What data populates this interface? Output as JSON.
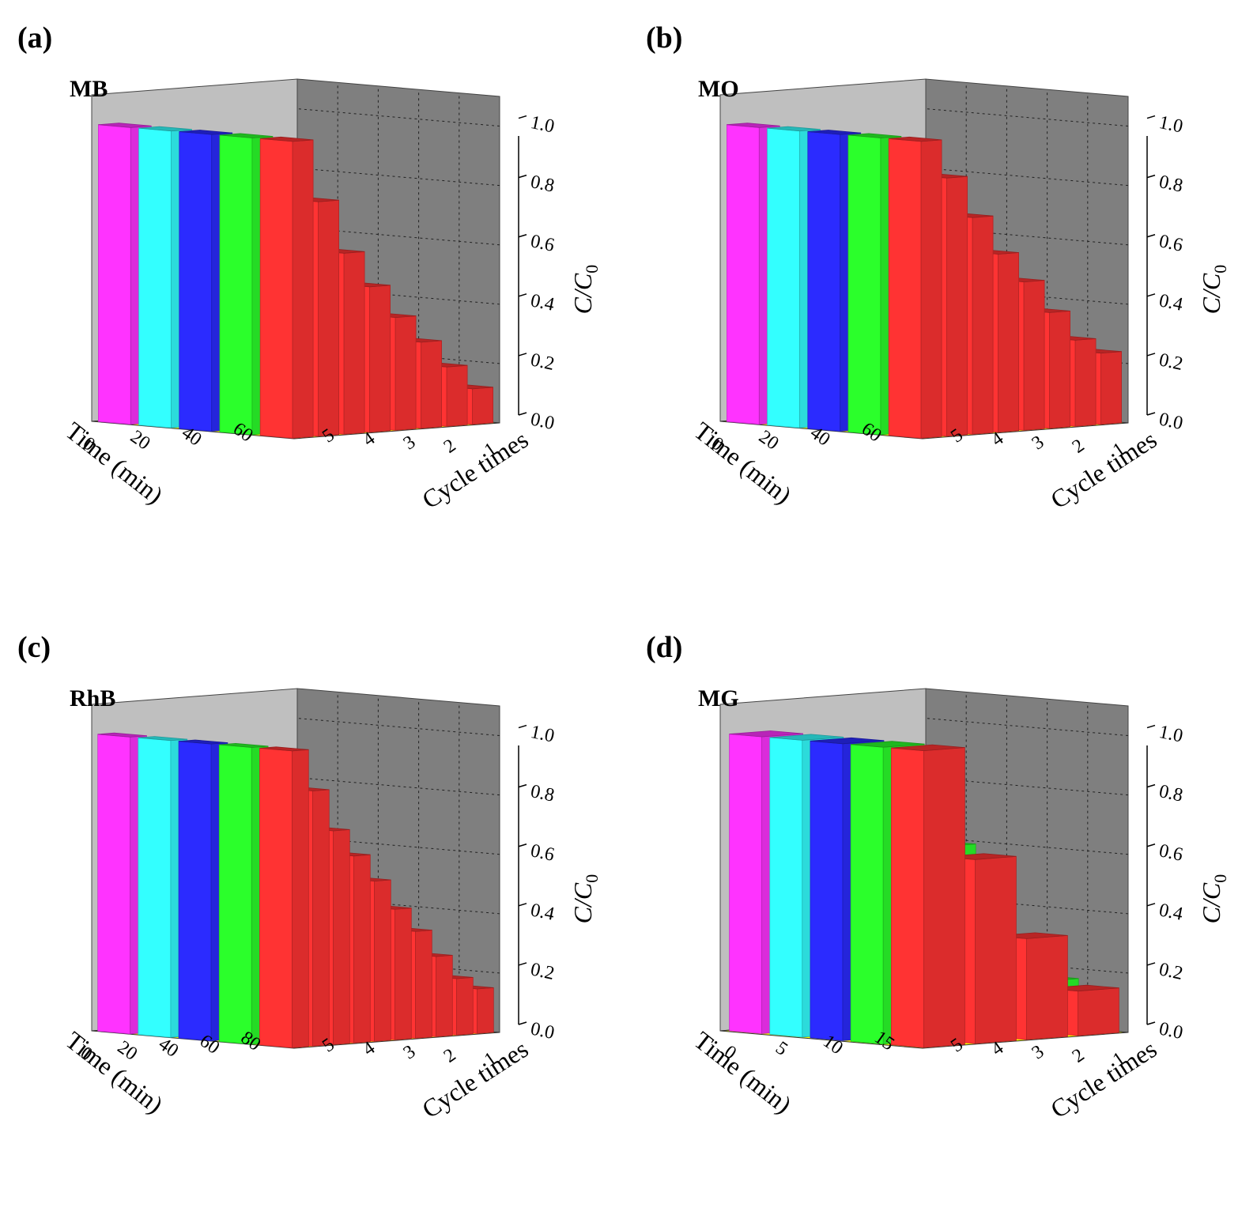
{
  "chart_data": [
    {
      "type": "bar3d",
      "panel": "(a)",
      "dye": "MB",
      "xlabel": "Time (min)",
      "ylabel": "Cycle times",
      "zlabel": "C/C",
      "zlabel_sub": "0",
      "zlim": [
        0,
        1.1
      ],
      "z_ticks": [
        "0.0",
        "0.2",
        "0.4",
        "0.6",
        "0.8",
        "1.0"
      ],
      "time_ticks": [
        "0",
        "20",
        "40",
        "60"
      ],
      "cycles": [
        "1",
        "2",
        "3",
        "4",
        "5"
      ],
      "time": [
        0,
        10,
        20,
        30,
        40,
        50,
        60,
        70
      ],
      "series": [
        {
          "name": "5",
          "color": "#ff33ff",
          "values": [
            1.0,
            0.82,
            0.65,
            0.52,
            0.41,
            0.31,
            0.2,
            0.12
          ]
        },
        {
          "name": "4",
          "color": "#33ffff",
          "values": [
            1.0,
            0.8,
            0.64,
            0.52,
            0.41,
            0.31,
            0.21,
            0.12
          ]
        },
        {
          "name": "3",
          "color": "#2b2bff",
          "values": [
            1.0,
            0.78,
            0.62,
            0.5,
            0.4,
            0.31,
            0.2,
            0.12
          ]
        },
        {
          "name": "2",
          "color": "#2bff2b",
          "values": [
            1.0,
            0.8,
            0.63,
            0.5,
            0.4,
            0.31,
            0.21,
            0.12
          ]
        },
        {
          "name": "1",
          "color": "#ff3333",
          "values": [
            1.0,
            0.79,
            0.61,
            0.49,
            0.38,
            0.29,
            0.2,
            0.12
          ]
        }
      ]
    },
    {
      "type": "bar3d",
      "panel": "(b)",
      "dye": "MO",
      "xlabel": "Time (min)",
      "ylabel": "Cycle times",
      "zlabel": "C/C",
      "zlabel_sub": "0",
      "zlim": [
        0,
        1.1
      ],
      "z_ticks": [
        "0.0",
        "0.2",
        "0.4",
        "0.6",
        "0.8",
        "1.0"
      ],
      "time_ticks": [
        "0",
        "20",
        "40",
        "60"
      ],
      "cycles": [
        "1",
        "2",
        "3",
        "4",
        "5"
      ],
      "time": [
        0,
        10,
        20,
        30,
        40,
        50,
        60,
        70
      ],
      "series": [
        {
          "name": "5",
          "color": "#ff33ff",
          "values": [
            1.0,
            0.82,
            0.69,
            0.56,
            0.45,
            0.35,
            0.24,
            0.17
          ]
        },
        {
          "name": "4",
          "color": "#33ffff",
          "values": [
            1.0,
            0.82,
            0.67,
            0.54,
            0.45,
            0.35,
            0.22,
            0.15
          ]
        },
        {
          "name": "3",
          "color": "#2b2bff",
          "values": [
            1.0,
            0.83,
            0.71,
            0.58,
            0.47,
            0.4,
            0.31,
            0.28
          ]
        },
        {
          "name": "2",
          "color": "#2bff2b",
          "values": [
            1.0,
            0.86,
            0.73,
            0.62,
            0.51,
            0.42,
            0.29,
            0.24
          ]
        },
        {
          "name": "1",
          "color": "#ff3333",
          "values": [
            1.0,
            0.87,
            0.73,
            0.6,
            0.5,
            0.39,
            0.29,
            0.24
          ]
        }
      ]
    },
    {
      "type": "bar3d",
      "panel": "(c)",
      "dye": "RhB",
      "xlabel": "Time (min)",
      "ylabel": "Cycle times",
      "zlabel": "C/C",
      "zlabel_sub": "0",
      "zlim": [
        0,
        1.1
      ],
      "z_ticks": [
        "0.0",
        "0.2",
        "0.4",
        "0.6",
        "0.8",
        "1.0"
      ],
      "time_ticks": [
        "0",
        "20",
        "40",
        "60",
        "80"
      ],
      "cycles": [
        "1",
        "2",
        "3",
        "4",
        "5"
      ],
      "time": [
        0,
        10,
        20,
        30,
        40,
        50,
        60,
        70,
        80,
        90
      ],
      "series": [
        {
          "name": "5",
          "color": "#ff33ff",
          "values": [
            1.0,
            0.87,
            0.72,
            0.63,
            0.52,
            0.43,
            0.34,
            0.25,
            0.17,
            0.12
          ]
        },
        {
          "name": "4",
          "color": "#33ffff",
          "values": [
            1.0,
            0.86,
            0.74,
            0.63,
            0.53,
            0.43,
            0.35,
            0.26,
            0.18,
            0.12
          ]
        },
        {
          "name": "3",
          "color": "#2b2bff",
          "values": [
            1.0,
            0.85,
            0.72,
            0.61,
            0.52,
            0.43,
            0.34,
            0.25,
            0.18,
            0.12
          ]
        },
        {
          "name": "2",
          "color": "#2bff2b",
          "values": [
            1.0,
            0.87,
            0.74,
            0.65,
            0.55,
            0.44,
            0.35,
            0.27,
            0.18,
            0.12
          ]
        },
        {
          "name": "1",
          "color": "#ff3333",
          "values": [
            1.0,
            0.86,
            0.72,
            0.63,
            0.54,
            0.44,
            0.36,
            0.27,
            0.19,
            0.15
          ]
        }
      ]
    },
    {
      "type": "bar3d",
      "panel": "(d)",
      "dye": "MG",
      "xlabel": "Time (min)",
      "ylabel": "Cycle times",
      "zlabel": "C/C",
      "zlabel_sub": "0",
      "zlim": [
        0,
        1.1
      ],
      "z_ticks": [
        "0.0",
        "0.2",
        "0.4",
        "0.6",
        "0.8",
        "1.0"
      ],
      "time_ticks": [
        "0",
        "5",
        "10",
        "15"
      ],
      "cycles": [
        "1",
        "2",
        "3",
        "4",
        "5"
      ],
      "time": [
        0,
        5,
        10,
        15
      ],
      "series": [
        {
          "name": "5",
          "color": "#ff33ff",
          "values": [
            1.0,
            0.43,
            0.2,
            0.03
          ]
        },
        {
          "name": "4",
          "color": "#33ffff",
          "values": [
            1.0,
            0.5,
            0.24,
            0.08
          ]
        },
        {
          "name": "3",
          "color": "#2b2bff",
          "values": [
            1.0,
            0.55,
            0.28,
            0.05
          ]
        },
        {
          "name": "2",
          "color": "#2bff2b",
          "values": [
            1.0,
            0.65,
            0.33,
            0.17
          ]
        },
        {
          "name": "1",
          "color": "#ff3333",
          "values": [
            1.0,
            0.62,
            0.34,
            0.15
          ]
        }
      ]
    }
  ]
}
